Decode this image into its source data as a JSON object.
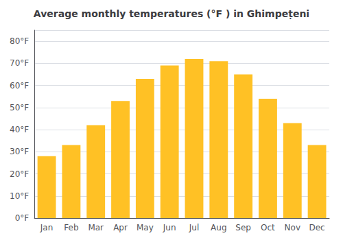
{
  "chart_data": {
    "type": "bar",
    "title": "Average monthly temperatures (°F ) in Ghimpețeni",
    "categories": [
      "Jan",
      "Feb",
      "Mar",
      "Apr",
      "May",
      "Jun",
      "Jul",
      "Aug",
      "Sep",
      "Oct",
      "Nov",
      "Dec"
    ],
    "values": [
      28,
      33,
      42,
      53,
      63,
      69,
      72,
      71,
      65,
      54,
      43,
      33
    ],
    "color": "#FFC125",
    "ylim": [
      0,
      85
    ],
    "yticks": [
      {
        "value": 0,
        "label": "0°F"
      },
      {
        "value": 10,
        "label": "10°F"
      },
      {
        "value": 20,
        "label": "20°F"
      },
      {
        "value": 30,
        "label": "30°F"
      },
      {
        "value": 40,
        "label": "40°F"
      },
      {
        "value": 50,
        "label": "50°F"
      },
      {
        "value": 60,
        "label": "60°F"
      },
      {
        "value": 70,
        "label": "70°F"
      },
      {
        "value": 80,
        "label": "80°F"
      }
    ],
    "grid": true
  }
}
